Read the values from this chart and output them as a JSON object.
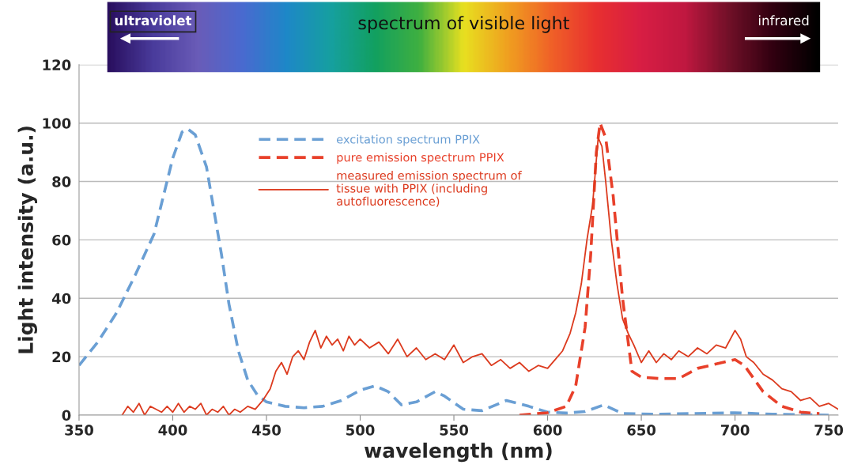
{
  "chart_data": {
    "type": "line",
    "title": "spectrum of visible light",
    "xlabel": "wavelength (nm)",
    "ylabel": "Light intensity (a.u.)",
    "annotations": [
      "ultraviolet",
      "infrared"
    ],
    "xlim": [
      350,
      755
    ],
    "xticks": [
      350,
      400,
      450,
      500,
      550,
      600,
      650,
      700,
      750
    ],
    "ylim": [
      0,
      120
    ],
    "yticks": [
      0,
      20,
      40,
      60,
      80,
      100,
      120
    ],
    "grid": "y",
    "legend": "top",
    "marker": "none",
    "series": [
      {
        "name": "excitation spectrum PPIX",
        "color": "#6a9fd4",
        "line_style": "dashed",
        "x": [
          350,
          360,
          370,
          380,
          390,
          395,
          400,
          405,
          408,
          412,
          418,
          422,
          426,
          430,
          435,
          440,
          445,
          450,
          460,
          470,
          480,
          490,
          500,
          508,
          515,
          522,
          530,
          540,
          545,
          555,
          565,
          578,
          590,
          600,
          610,
          620,
          630,
          640,
          660,
          700,
          720,
          750
        ],
        "values": [
          17,
          25,
          35,
          48,
          62,
          75,
          88,
          97,
          98,
          96,
          85,
          70,
          55,
          38,
          22,
          12,
          7,
          4.5,
          3,
          2.5,
          3,
          5,
          8.5,
          10,
          8,
          3.5,
          4.5,
          8,
          6.5,
          2,
          1.5,
          5,
          3,
          1,
          0.7,
          1.2,
          3.5,
          0.5,
          0.3,
          0.8,
          0.3,
          0
        ]
      },
      {
        "name": "pure emission spectrum PPIX",
        "color": "#e8402a",
        "line_style": "dashed",
        "x": [
          585,
          600,
          610,
          615,
          620,
          623,
          626,
          628,
          631,
          635,
          640,
          645,
          650,
          660,
          670,
          680,
          700,
          705,
          715,
          725,
          735,
          745
        ],
        "values": [
          0,
          0.8,
          3,
          10,
          30,
          55,
          90,
          100,
          95,
          75,
          40,
          15,
          13,
          12.5,
          12.5,
          16,
          19,
          17,
          8,
          3,
          1,
          0.5
        ]
      },
      {
        "name": "measured emission spectrum of\ntissue with PPIX (including\nautofluorescence)",
        "color": "#dc3a1e",
        "line_style": "solid",
        "x": [
          373,
          376,
          379,
          382,
          385,
          388,
          391,
          394,
          397,
          400,
          403,
          406,
          409,
          412,
          415,
          418,
          421,
          424,
          427,
          430,
          433,
          436,
          440,
          444,
          448,
          452,
          455,
          458,
          461,
          464,
          467,
          470,
          473,
          476,
          479,
          482,
          485,
          488,
          491,
          494,
          497,
          500,
          505,
          510,
          515,
          520,
          525,
          530,
          535,
          540,
          545,
          550,
          555,
          560,
          565,
          570,
          575,
          580,
          585,
          590,
          595,
          600,
          604,
          608,
          612,
          615,
          618,
          621,
          624,
          627,
          629,
          631,
          634,
          637,
          640,
          643,
          646,
          650,
          654,
          658,
          662,
          666,
          670,
          675,
          680,
          685,
          690,
          695,
          700,
          703,
          706,
          710,
          715,
          720,
          725,
          730,
          735,
          740,
          745,
          750,
          755
        ],
        "values": [
          0,
          3,
          1,
          4,
          0,
          3,
          2,
          1,
          3,
          1,
          4,
          1,
          3,
          2,
          4,
          0,
          2,
          1,
          3,
          0,
          2,
          1,
          3,
          2,
          5,
          9,
          15,
          18,
          14,
          20,
          22,
          19,
          25,
          29,
          23,
          27,
          24,
          26,
          22,
          27,
          24,
          26,
          23,
          25,
          21,
          26,
          20,
          23,
          19,
          21,
          19,
          24,
          18,
          20,
          21,
          17,
          19,
          16,
          18,
          15,
          17,
          16,
          19,
          22,
          28,
          35,
          45,
          60,
          72,
          95,
          92,
          80,
          60,
          45,
          33,
          28,
          24,
          18,
          22,
          18,
          21,
          19,
          22,
          20,
          23,
          21,
          24,
          23,
          29,
          26,
          20,
          18,
          14,
          12,
          9,
          8,
          5,
          6,
          3,
          4,
          2
        ]
      }
    ]
  }
}
